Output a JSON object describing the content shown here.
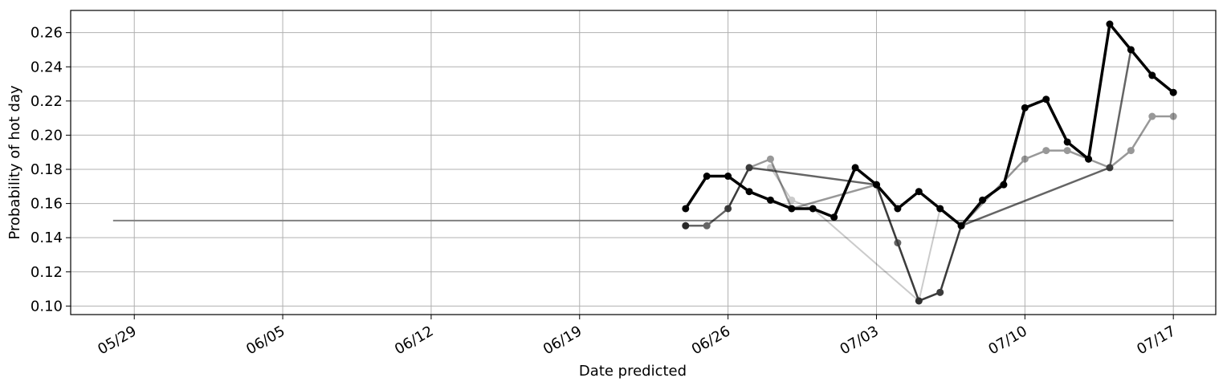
{
  "chart_data": {
    "type": "line",
    "title": "",
    "xlabel": "Date predicted",
    "ylabel": "Probability of hot day",
    "xlim": [
      "2024-05-26",
      "2024-07-19"
    ],
    "ylim": [
      0.095,
      0.273
    ],
    "grid": true,
    "x_ticks": [
      {
        "date": "2024-05-29",
        "label": "05/29"
      },
      {
        "date": "2024-06-05",
        "label": "06/05"
      },
      {
        "date": "2024-06-12",
        "label": "06/12"
      },
      {
        "date": "2024-06-19",
        "label": "06/19"
      },
      {
        "date": "2024-06-26",
        "label": "06/26"
      },
      {
        "date": "2024-07-03",
        "label": "07/03"
      },
      {
        "date": "2024-07-10",
        "label": "07/10"
      },
      {
        "date": "2024-07-17",
        "label": "07/17"
      }
    ],
    "y_ticks": [
      {
        "value": 0.1,
        "label": "0.10"
      },
      {
        "value": 0.12,
        "label": "0.12"
      },
      {
        "value": 0.14,
        "label": "0.14"
      },
      {
        "value": 0.16,
        "label": "0.16"
      },
      {
        "value": 0.18,
        "label": "0.18"
      },
      {
        "value": 0.2,
        "label": "0.20"
      },
      {
        "value": 0.22,
        "label": "0.22"
      },
      {
        "value": 0.24,
        "label": "0.24"
      },
      {
        "value": 0.26,
        "label": "0.26"
      }
    ],
    "baseline": {
      "x": [
        "2024-05-28",
        "2024-07-17"
      ],
      "y": [
        0.15,
        0.15
      ],
      "color": "#808080"
    },
    "series": [
      {
        "color": "#000000",
        "opacity": 0.2,
        "width": 2,
        "x": [
          "2024-06-28",
          "2024-06-29",
          "2024-06-30",
          "2024-07-05",
          "2024-07-06"
        ],
        "y": [
          0.181,
          0.162,
          0.157,
          0.103,
          0.157
        ]
      },
      {
        "color": "#000000",
        "opacity": 0.4,
        "width": 2.5,
        "x": [
          "2024-06-26",
          "2024-06-27",
          "2024-06-28",
          "2024-06-29",
          "2024-07-03",
          "2024-07-05",
          "2024-07-06",
          "2024-07-07",
          "2024-07-10",
          "2024-07-11",
          "2024-07-12",
          "2024-07-13",
          "2024-07-14",
          "2024-07-15",
          "2024-07-16",
          "2024-07-17"
        ],
        "y": [
          0.157,
          0.181,
          0.186,
          0.157,
          0.171,
          0.103,
          0.108,
          0.147,
          0.186,
          0.191,
          0.191,
          0.186,
          0.181,
          0.191,
          0.211,
          0.211
        ]
      },
      {
        "color": "#000000",
        "opacity": 0.6,
        "width": 2.5,
        "x": [
          "2024-06-24",
          "2024-06-25",
          "2024-06-26",
          "2024-06-27",
          "2024-07-03",
          "2024-07-04",
          "2024-07-05",
          "2024-07-06",
          "2024-07-07",
          "2024-07-14",
          "2024-07-15",
          "2024-07-16",
          "2024-07-17"
        ],
        "y": [
          0.147,
          0.147,
          0.157,
          0.181,
          0.171,
          0.137,
          0.103,
          0.108,
          0.147,
          0.181,
          0.25,
          0.235,
          0.225
        ]
      },
      {
        "color": "#000000",
        "opacity": 1.0,
        "width": 3.5,
        "x": [
          "2024-06-24",
          "2024-06-25",
          "2024-06-26",
          "2024-06-27",
          "2024-06-28",
          "2024-06-29",
          "2024-06-30",
          "2024-07-01",
          "2024-07-02",
          "2024-07-03",
          "2024-07-04",
          "2024-07-05",
          "2024-07-06",
          "2024-07-07",
          "2024-07-08",
          "2024-07-09",
          "2024-07-10",
          "2024-07-11",
          "2024-07-12",
          "2024-07-13",
          "2024-07-14",
          "2024-07-15",
          "2024-07-16",
          "2024-07-17"
        ],
        "y": [
          0.157,
          0.176,
          0.176,
          0.167,
          0.162,
          0.157,
          0.157,
          0.152,
          0.181,
          0.171,
          0.157,
          0.167,
          0.157,
          0.147,
          0.162,
          0.171,
          0.216,
          0.221,
          0.196,
          0.186,
          0.265,
          0.25,
          0.235,
          0.225
        ]
      },
      {
        "color": "#000000",
        "opacity": 0.6,
        "width": 0,
        "markers_only": true,
        "x": [
          "2024-06-24"
        ],
        "y": [
          0.147
        ]
      }
    ]
  }
}
